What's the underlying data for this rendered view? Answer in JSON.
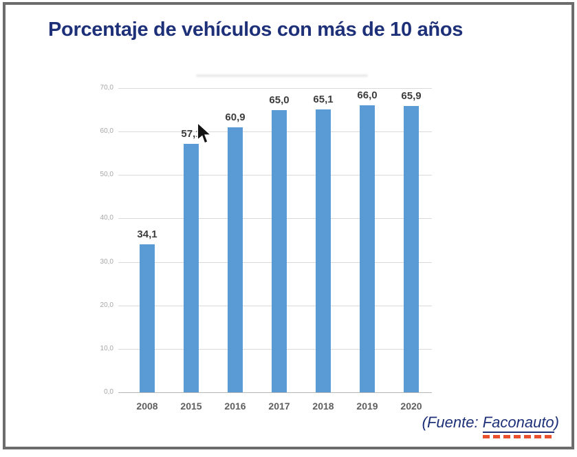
{
  "title": {
    "text": "Porcentaje de vehículos con más de 10 años"
  },
  "chart_data": {
    "type": "bar",
    "title": "Porcentaje de vehículos con más de 10 años",
    "categories": [
      "2008",
      "2015",
      "2016",
      "2017",
      "2018",
      "2019",
      "2020"
    ],
    "values": [
      34.1,
      57.1,
      60.9,
      65.0,
      65.1,
      66.0,
      65.9
    ],
    "value_labels": [
      "34,1",
      "57,1",
      "60,9",
      "65,0",
      "65,1",
      "66,0",
      "65,9"
    ],
    "y_tick_values": [
      70,
      60,
      50,
      40,
      30,
      20,
      10,
      0
    ],
    "y_tick_labels": [
      "70,0",
      "60,0",
      "50,0",
      "40,0",
      "30,0",
      "20,0",
      "10,0",
      "0,0"
    ],
    "ylim": [
      0,
      70
    ],
    "xlabel": "",
    "ylabel": "",
    "grid": true,
    "legend": false,
    "bar_color": "#5b9bd5"
  },
  "footer": {
    "prefix": "(Fuente: ",
    "link": "Faconauto",
    "suffix": ")"
  },
  "colors": {
    "navy": "#1d3078",
    "bar": "#5b9bd5",
    "grid": "#d9d9d9",
    "axis": "#b5b5b5",
    "y_tick": "#a6a6a6",
    "x_tick": "#5f5f5f",
    "value_label": "#3c3c3c",
    "frame": "#6c6c6c",
    "red_underline": "#e8502e"
  }
}
